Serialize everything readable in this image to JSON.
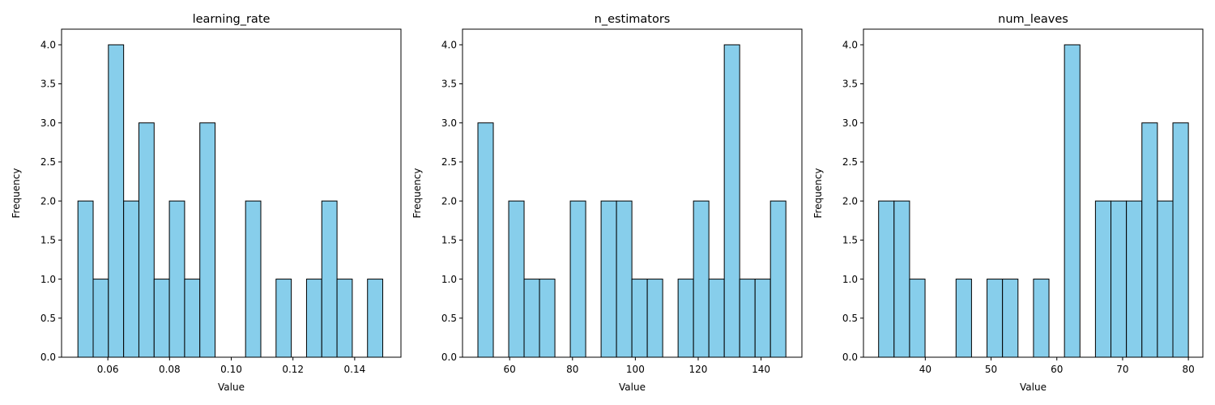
{
  "chart_data": [
    {
      "type": "bar",
      "title": "learning_rate",
      "xlabel": "Value",
      "ylabel": "Frequency",
      "xlim": [
        0.045,
        0.155
      ],
      "ylim": [
        0,
        4.2
      ],
      "xticks": [
        0.06,
        0.08,
        0.1,
        0.12,
        0.14
      ],
      "xtick_labels": [
        "0.06",
        "0.08",
        "0.10",
        "0.12",
        "0.14"
      ],
      "yticks": [
        0.0,
        0.5,
        1.0,
        1.5,
        2.0,
        2.5,
        3.0,
        3.5,
        4.0
      ],
      "ytick_labels": [
        "0.0",
        "0.5",
        "1.0",
        "1.5",
        "2.0",
        "2.5",
        "3.0",
        "3.5",
        "4.0"
      ],
      "bin_start": 0.0503,
      "bin_width": 0.00494,
      "values": [
        2,
        1,
        4,
        2,
        3,
        1,
        2,
        1,
        3,
        0,
        0,
        2,
        0,
        1,
        0,
        1,
        2,
        1,
        0,
        1
      ],
      "bar_color": "#87ceeb",
      "edge_color": "#000000",
      "grid": false
    },
    {
      "type": "bar",
      "title": "n_estimators",
      "xlabel": "Value",
      "ylabel": "Frequency",
      "xlim": [
        45,
        153
      ],
      "ylim": [
        0,
        4.2
      ],
      "xticks": [
        60,
        80,
        100,
        120,
        140
      ],
      "xtick_labels": [
        "60",
        "80",
        "100",
        "120",
        "140"
      ],
      "yticks": [
        0.0,
        0.5,
        1.0,
        1.5,
        2.0,
        2.5,
        3.0,
        3.5,
        4.0
      ],
      "ytick_labels": [
        "0.0",
        "0.5",
        "1.0",
        "1.5",
        "2.0",
        "2.5",
        "3.0",
        "3.5",
        "4.0"
      ],
      "bin_start": 49.9,
      "bin_width": 4.9,
      "values": [
        3,
        0,
        2,
        1,
        1,
        0,
        2,
        0,
        2,
        2,
        1,
        1,
        0,
        1,
        2,
        1,
        4,
        1,
        1,
        2
      ],
      "bar_color": "#87ceeb",
      "edge_color": "#000000",
      "grid": false
    },
    {
      "type": "bar",
      "title": "num_leaves",
      "xlabel": "Value",
      "ylabel": "Frequency",
      "xlim": [
        30.6,
        82.2
      ],
      "ylim": [
        0,
        4.2
      ],
      "xticks": [
        40,
        50,
        60,
        70,
        80
      ],
      "xtick_labels": [
        "40",
        "50",
        "60",
        "70",
        "80"
      ],
      "yticks": [
        0.0,
        0.5,
        1.0,
        1.5,
        2.0,
        2.5,
        3.0,
        3.5,
        4.0
      ],
      "ytick_labels": [
        "0.0",
        "0.5",
        "1.0",
        "1.5",
        "2.0",
        "2.5",
        "3.0",
        "3.5",
        "4.0"
      ],
      "bin_start": 32.9,
      "bin_width": 2.355,
      "values": [
        2,
        2,
        1,
        0,
        0,
        1,
        0,
        1,
        1,
        0,
        1,
        0,
        4,
        0,
        2,
        2,
        2,
        3,
        2,
        3
      ],
      "bar_color": "#87ceeb",
      "edge_color": "#000000",
      "grid": false
    }
  ]
}
